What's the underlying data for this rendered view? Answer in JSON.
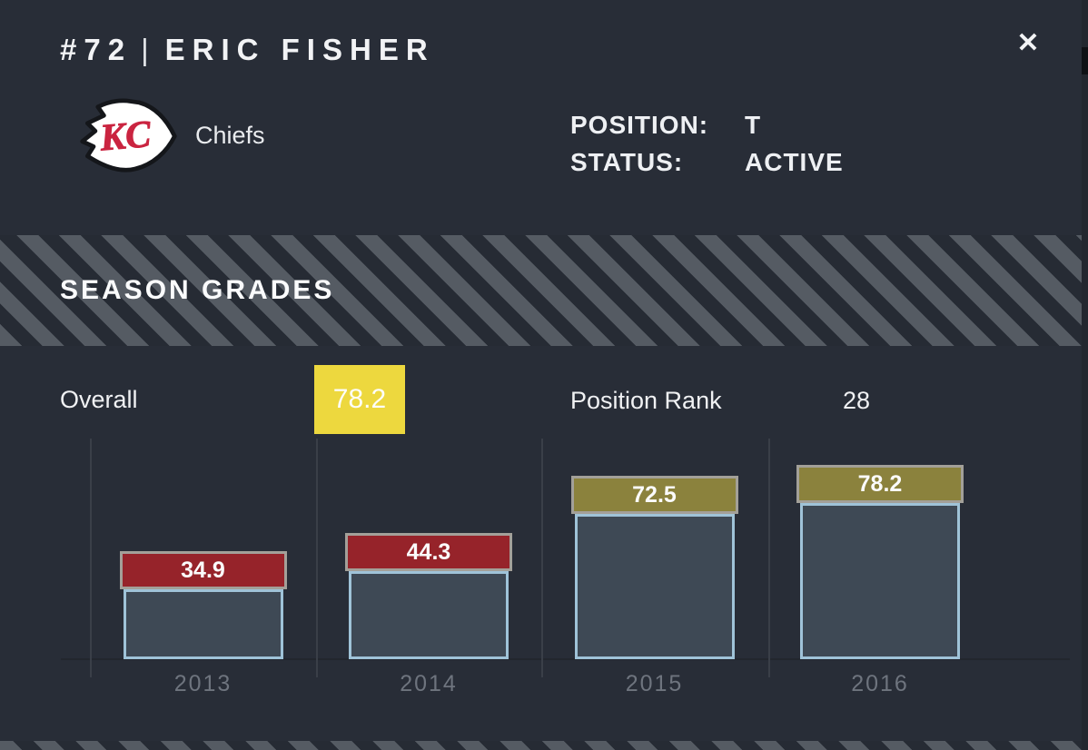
{
  "header": {
    "number": "#72",
    "divider": "|",
    "name": "ERIC FISHER",
    "close": "✕"
  },
  "player": {
    "team": "Chiefs",
    "team_logo": "kansas-city-chiefs-arrowhead",
    "logo_monogram": "KC",
    "position_label": "POSITION:",
    "position_value": "T",
    "status_label": "STATUS:",
    "status_value": "ACTIVE"
  },
  "section_title": "SEASON GRADES",
  "summary": {
    "overall_label": "Overall",
    "overall_value": "78.2",
    "rank_label": "Position Rank",
    "rank_value": "28"
  },
  "chart_data": {
    "type": "bar",
    "title": "SEASON GRADES",
    "categories": [
      "2013",
      "2014",
      "2015",
      "2016"
    ],
    "values": [
      34.9,
      44.3,
      72.5,
      78.2
    ],
    "value_labels": [
      "34.9",
      "44.3",
      "72.5",
      "78.2"
    ],
    "bar_colors": [
      "#96232a",
      "#96232a",
      "#8b823d",
      "#8b823d"
    ],
    "xlabel": "",
    "ylabel": "",
    "ylim": [
      0,
      100
    ],
    "grid": "vertical-only",
    "legend": "none",
    "value_label_position": "top-of-bar"
  },
  "colors": {
    "background": "#282d37",
    "accent_yellow": "#edd83e",
    "grade_red": "#96232a",
    "grade_olive": "#8b823d",
    "bar_body": "#3e4955",
    "bar_body_border": "#9fc3d8",
    "bar_label_border": "#a3a099",
    "team_red": "#ca2440",
    "stripe_gray": "#555b63"
  }
}
